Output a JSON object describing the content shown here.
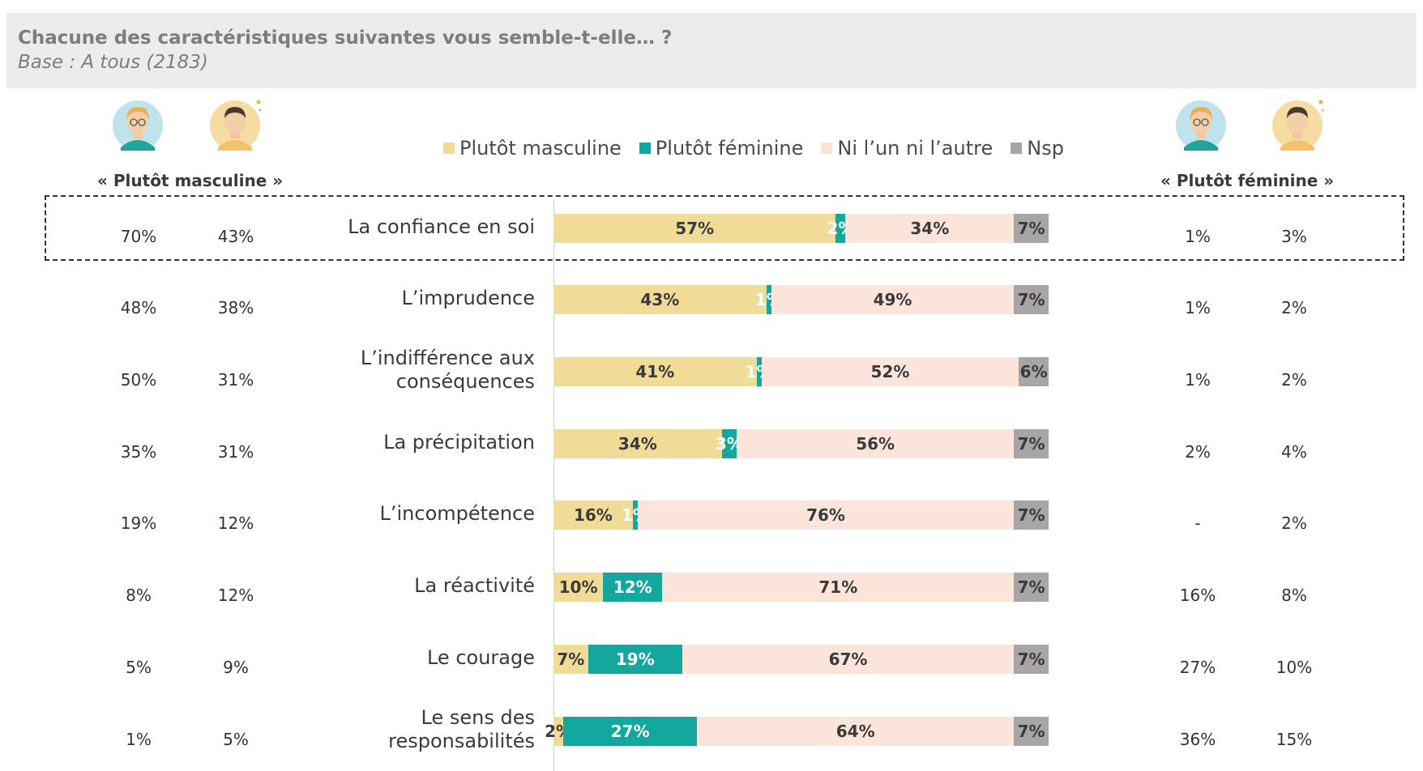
{
  "header": {
    "title": "Chacune des caractéristiques suivantes vous semble-t-elle… ?",
    "subtitle": "Base : A tous (2183)"
  },
  "legend": {
    "items": [
      {
        "label": "Plutôt masculine",
        "color": "#f0dc96"
      },
      {
        "label": "Plutôt féminine",
        "color": "#13a79e"
      },
      {
        "label": "Ni l’un ni l’autre",
        "color": "#fbe5da"
      },
      {
        "label": "Nsp",
        "color": "#a7a5a6"
      }
    ]
  },
  "columns": {
    "left_header": "« Plutôt masculine »",
    "right_header": "« Plutôt féminine »",
    "icons": [
      "woman-avatar-icon",
      "man-avatar-icon"
    ]
  },
  "colors": {
    "masculine": "#f0dc96",
    "feminine": "#13a79e",
    "neither": "#fbe5da",
    "nsp": "#a7a5a6",
    "header_bg": "#ececec"
  },
  "chart_data": {
    "type": "bar",
    "stacked": true,
    "orientation": "horizontal",
    "categories": [
      "La confiance en soi",
      "L’imprudence",
      "L’indifférence aux conséquences",
      "La précipitation",
      "L’incompétence",
      "La réactivité",
      "Le courage",
      "Le sens des responsabilités"
    ],
    "series": [
      {
        "name": "Plutôt masculine",
        "values": [
          57,
          43,
          41,
          34,
          16,
          10,
          7,
          2
        ]
      },
      {
        "name": "Plutôt féminine",
        "values": [
          2,
          1,
          1,
          3,
          1,
          12,
          19,
          27
        ]
      },
      {
        "name": "Ni l’un ni l’autre",
        "values": [
          34,
          49,
          52,
          56,
          76,
          71,
          67,
          64
        ]
      },
      {
        "name": "Nsp",
        "values": [
          7,
          7,
          6,
          7,
          7,
          7,
          7,
          7
        ]
      }
    ],
    "labels": [
      [
        "57%",
        "2%",
        "34%",
        "7%"
      ],
      [
        "43%",
        "1%",
        "49%",
        "7%"
      ],
      [
        "41%",
        "1%",
        "52%",
        "6%"
      ],
      [
        "34%",
        "3%",
        "56%",
        "7%"
      ],
      [
        "16%",
        "1%",
        "76%",
        "7%"
      ],
      [
        "10%",
        "12%",
        "71%",
        "7%"
      ],
      [
        "7%",
        "19%",
        "67%",
        "7%"
      ],
      [
        "2%",
        "27%",
        "64%",
        "7%"
      ]
    ],
    "side_masculine": {
      "women": [
        "70%",
        "48%",
        "50%",
        "35%",
        "19%",
        "8%",
        "5%",
        "1%"
      ],
      "men": [
        "43%",
        "38%",
        "31%",
        "31%",
        "12%",
        "12%",
        "9%",
        "5%"
      ]
    },
    "side_feminine": {
      "women": [
        "1%",
        "1%",
        "1%",
        "2%",
        "-",
        "16%",
        "27%",
        "36%"
      ],
      "men": [
        "3%",
        "2%",
        "2%",
        "4%",
        "2%",
        "8%",
        "10%",
        "15%"
      ]
    },
    "highlighted_row": "La confiance en soi"
  }
}
